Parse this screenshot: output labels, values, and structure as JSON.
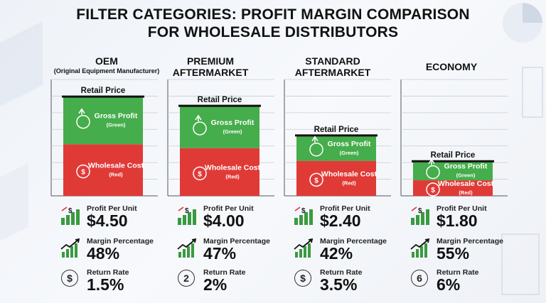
{
  "title_line1": "FILTER CATEGORIES: PROFIT MARGIN COMPARISON",
  "title_line2": "FOR WHOLESALE DISTRIBUTORS",
  "chart_data": {
    "type": "bar",
    "stacked": true,
    "categories": [
      "OEM",
      "PREMIUM AFTERMARKET",
      "STANDARD AFTERMARKET",
      "ECONOMY"
    ],
    "category_subtitles": [
      "(Original Equipment Manufacturer)",
      "",
      "",
      ""
    ],
    "series": [
      {
        "name": "Wholesale Cost",
        "legend_sub": "(Red)",
        "color": "#e03a37",
        "values": [
          4.88,
          4.51,
          3.31,
          1.47
        ]
      },
      {
        "name": "Gross Profit",
        "legend_sub": "(Green)",
        "color": "#45ad4b",
        "values": [
          4.5,
          4.0,
          2.4,
          1.8
        ]
      }
    ],
    "retail_label": "Retail Price",
    "ylim": [
      0,
      11
    ],
    "title": "FILTER CATEGORIES: PROFIT MARGIN COMPARISON FOR WHOLESALE DISTRIBUTORS"
  },
  "metrics": [
    {
      "profit_label": "Profit Per Unit",
      "profit": "$4.50",
      "margin_label": "Margin Percentage",
      "margin": "48%",
      "return_label": "Return Rate",
      "return": "1.5%",
      "return_glyph": "$"
    },
    {
      "profit_label": "Profit Per Unit",
      "profit": "$4.00",
      "margin_label": "Margin Percentage",
      "margin": "47%",
      "return_label": "Return Rate",
      "return": "2%",
      "return_glyph": "2"
    },
    {
      "profit_label": "Profit Per Unit",
      "profit": "$2.40",
      "margin_label": "Margin Percentage",
      "margin": "42%",
      "return_label": "Return Rate",
      "return": "3.5%",
      "return_glyph": "$"
    },
    {
      "profit_label": "Profit Per Unit",
      "profit": "$1.80",
      "margin_label": "Margin Percentage",
      "margin": "55%",
      "return_label": "Return Rate",
      "return": "6%",
      "return_glyph": "6"
    }
  ],
  "colors": {
    "profit": "#45ad4b",
    "cost": "#e03a37",
    "retail_line": "#111111"
  }
}
